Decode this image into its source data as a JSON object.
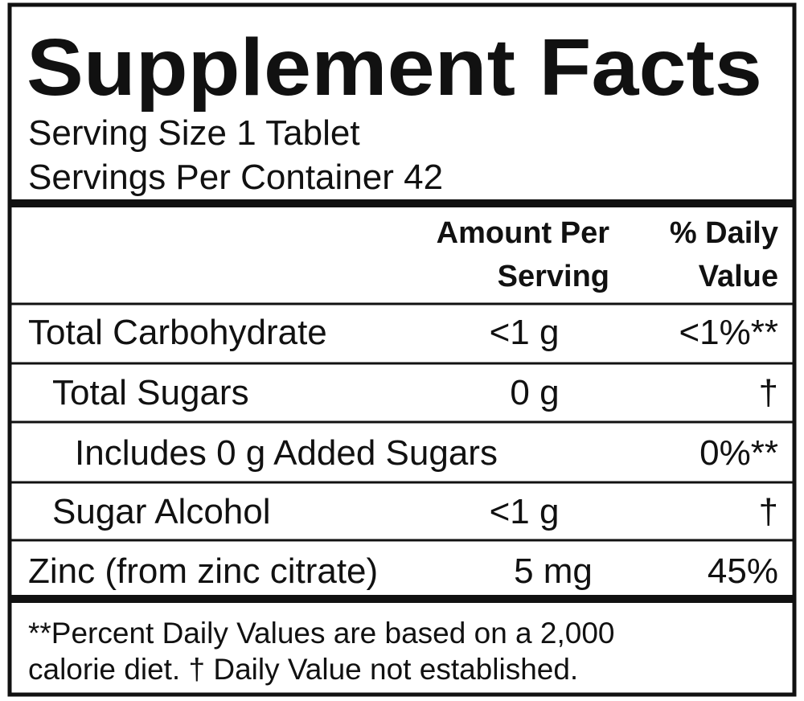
{
  "header": {
    "title": "Supplement Facts",
    "serving_size": "Serving Size 1 Tablet",
    "servings_per_container": "Servings Per Container 42"
  },
  "table": {
    "columns": {
      "amount": [
        "Amount Per",
        "Serving"
      ],
      "daily_value": [
        "% Daily",
        "Value"
      ]
    },
    "rows": [
      {
        "name": "Total Carbohydrate",
        "amount": "<1 g",
        "daily_value": "<1%**"
      },
      {
        "name": "Total Sugars",
        "amount": "0 g",
        "daily_value": "†"
      },
      {
        "name": "Includes 0 g Added Sugars",
        "daily_value": "0%**"
      },
      {
        "name": "Sugar Alcohol",
        "amount": "<1 g",
        "daily_value": "†"
      },
      {
        "name": "Zinc (from zinc citrate)",
        "amount": "5 mg",
        "daily_value": "45%"
      }
    ]
  },
  "footnote": {
    "lines": [
      "**Percent Daily Values are based on a 2,000",
      "calorie diet.  † Daily Value not established."
    ]
  }
}
